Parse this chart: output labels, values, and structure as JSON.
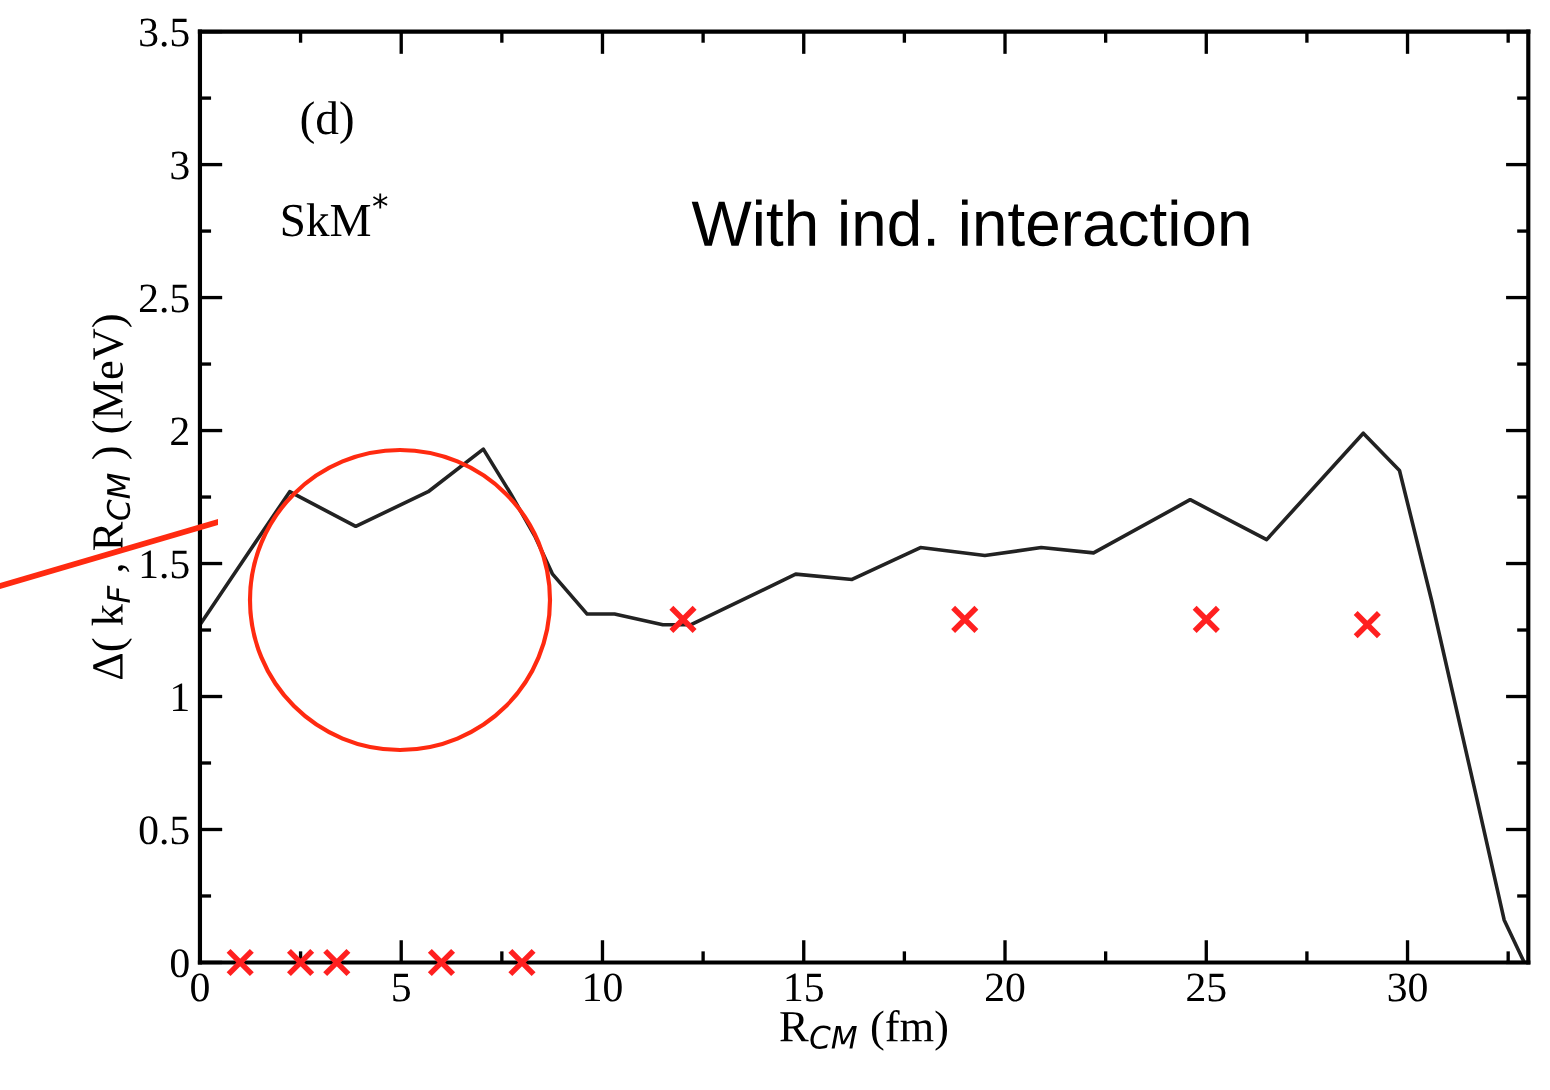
{
  "chart_data": {
    "type": "line",
    "xlabel": "R$_{CM}$ (fm)",
    "ylabel": "Δ( k$_{F}$ , R$_{CM}$ ) (MeV)",
    "annotations": [
      "(d)",
      "SkM$^{*}$",
      "With ind. interaction"
    ],
    "series": [
      {
        "color": "#222222",
        "x": [
          0,
          1.2,
          2.23,
          3.87,
          5.67,
          7.04,
          7.73,
          8.33,
          8.76,
          9.62,
          10.3,
          11.5,
          12.2,
          14.8,
          16.2,
          17.9,
          19.5,
          20.9,
          22.2,
          24.6,
          26.5,
          28.9,
          29.8,
          30.6,
          31.7,
          32.4,
          32.9
        ],
        "values": [
          1.27,
          1.54,
          1.77,
          1.64,
          1.77,
          1.93,
          1.76,
          1.6,
          1.46,
          1.31,
          1.31,
          1.27,
          1.27,
          1.46,
          1.44,
          1.56,
          1.53,
          1.56,
          1.54,
          1.74,
          1.59,
          1.99,
          1.85,
          1.36,
          0.63,
          0.16,
          0
        ]
      },
      {
        "type": "scatter",
        "marker": "cross",
        "color": "#ff2020",
        "x": [
          1,
          2.5,
          3.4,
          6,
          8,
          12,
          19,
          25,
          29
        ],
        "values": [
          0,
          0,
          0,
          0,
          0,
          1.29,
          1.29,
          1.29,
          1.27
        ]
      }
    ],
    "xlim": [
      0,
      33
    ],
    "ylim": [
      0,
      3.5
    ],
    "xticks": [
      0,
      {
        "value": 2.5,
        "label": null
      },
      5,
      {
        "value": 7.5,
        "label": null
      },
      10,
      {
        "value": 12.5,
        "label": null
      },
      15,
      {
        "value": 17.5,
        "label": null
      },
      20,
      {
        "value": 22.5,
        "label": null
      },
      25,
      {
        "value": 27.5,
        "label": null
      },
      30,
      {
        "value": 32.5,
        "label": null
      }
    ],
    "yticks": [
      0,
      {
        "value": 0.25,
        "label": null
      },
      0.5,
      {
        "value": 0.75,
        "label": null
      },
      1,
      {
        "value": 1.25,
        "label": null
      },
      1.5,
      {
        "value": 1.75,
        "label": null
      },
      2,
      {
        "value": 2.25,
        "label": null
      },
      2.5,
      {
        "value": 2.75,
        "label": null
      },
      3,
      {
        "value": 3.25,
        "label": null
      },
      3.5
    ],
    "grid": false,
    "legend": false
  }
}
